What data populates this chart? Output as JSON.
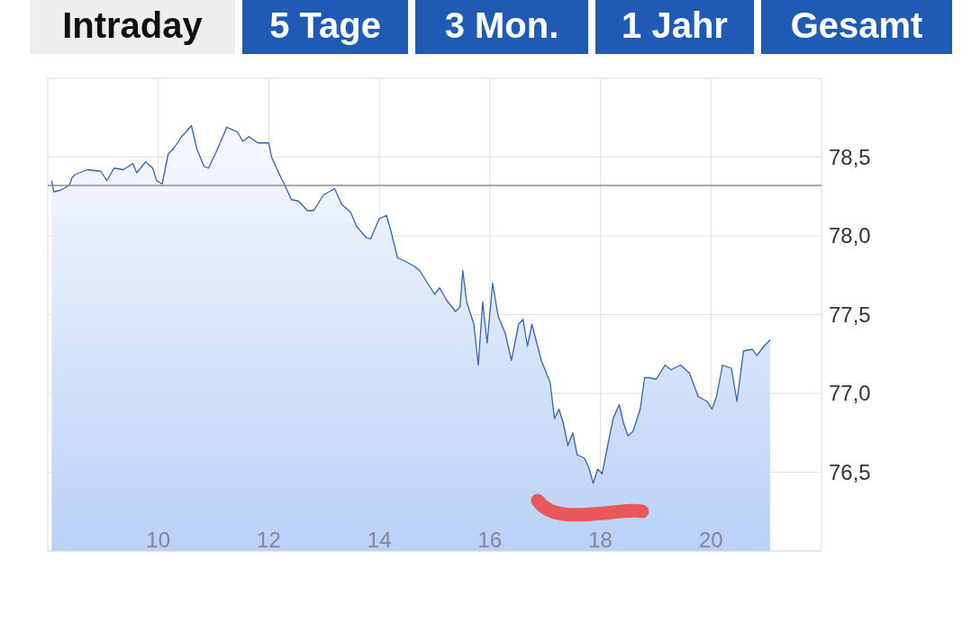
{
  "chart_data": {
    "type": "area",
    "annotations": [
      "Intraday",
      "5 Tage",
      "3 Mon.",
      "1 Jahr",
      "Gesamt"
    ],
    "series": [
      {
        "color": "#3563b5",
        "x": [
          8.07,
          8.11,
          8.23,
          8.39,
          8.44,
          8.5,
          8.72,
          8.96,
          9.07,
          9.2,
          9.37,
          9.54,
          9.61,
          9.77,
          9.9,
          9.97,
          10.07,
          10.18,
          10.29,
          10.42,
          10.5,
          10.6,
          10.7,
          10.83,
          10.91,
          11.07,
          11.24,
          11.43,
          11.53,
          11.64,
          11.8,
          12.0,
          12.05,
          12.18,
          12.29,
          12.41,
          12.54,
          12.7,
          12.81,
          12.99,
          13.19,
          13.32,
          13.48,
          13.59,
          13.76,
          13.84,
          14.0,
          14.13,
          14.21,
          14.33,
          14.46,
          14.62,
          14.73,
          14.89,
          15.0,
          15.09,
          15.22,
          15.38,
          15.46,
          15.51,
          15.58,
          15.71,
          15.79,
          15.87,
          15.95,
          16.05,
          16.15,
          16.28,
          16.39,
          16.52,
          16.6,
          16.68,
          16.76,
          16.93,
          17.09,
          17.17,
          17.25,
          17.33,
          17.41,
          17.5,
          17.58,
          17.71,
          17.79,
          17.87,
          17.95,
          18.03,
          18.15,
          18.23,
          18.34,
          18.42,
          18.5,
          18.59,
          18.72,
          18.8,
          18.88,
          19.01,
          19.17,
          19.28,
          19.45,
          19.61,
          19.77,
          19.93,
          20.02,
          20.1,
          20.21,
          20.37,
          20.47,
          20.59,
          20.75,
          20.83,
          20.96,
          21.07
        ],
        "values": [
          78.35,
          78.28,
          78.29,
          78.32,
          78.37,
          78.39,
          78.42,
          78.41,
          78.35,
          78.43,
          78.42,
          78.46,
          78.4,
          78.47,
          78.43,
          78.35,
          78.33,
          78.52,
          78.56,
          78.63,
          78.66,
          78.7,
          78.55,
          78.44,
          78.43,
          78.55,
          78.69,
          78.66,
          78.6,
          78.63,
          78.59,
          78.59,
          78.5,
          78.4,
          78.32,
          78.23,
          78.22,
          78.16,
          78.16,
          78.26,
          78.3,
          78.2,
          78.15,
          78.06,
          77.99,
          77.98,
          78.11,
          78.13,
          78.03,
          77.86,
          77.84,
          77.81,
          77.78,
          77.69,
          77.63,
          77.67,
          77.59,
          77.52,
          77.55,
          77.78,
          77.58,
          77.44,
          77.18,
          77.58,
          77.32,
          77.7,
          77.49,
          77.38,
          77.21,
          77.44,
          77.47,
          77.3,
          77.44,
          77.21,
          77.07,
          76.84,
          76.9,
          76.81,
          76.67,
          76.75,
          76.61,
          76.59,
          76.53,
          76.43,
          76.52,
          76.49,
          76.7,
          76.84,
          76.93,
          76.81,
          76.73,
          76.76,
          76.9,
          77.1,
          77.1,
          77.09,
          77.18,
          77.15,
          77.18,
          77.13,
          76.98,
          76.95,
          76.9,
          76.98,
          77.18,
          77.16,
          76.95,
          77.27,
          77.28,
          77.24,
          77.3,
          77.34
        ]
      }
    ],
    "xlim": [
      8,
      22
    ],
    "xticks": [
      10,
      12,
      14,
      16,
      18,
      20
    ],
    "ylim": [
      76,
      79
    ],
    "yticks": [
      {
        "value": 76.5,
        "label": "76,5"
      },
      {
        "value": 77,
        "label": "77,0"
      },
      {
        "value": 77.5,
        "label": "77,5"
      },
      {
        "value": 78,
        "label": "78,0"
      },
      {
        "value": 78.5,
        "label": "78,5"
      }
    ],
    "ref_lines": [
      {
        "axis": "y",
        "value": 78.32,
        "color": "#8c8c8c"
      }
    ],
    "grid": true,
    "marker": "none",
    "line_style": "solid"
  }
}
